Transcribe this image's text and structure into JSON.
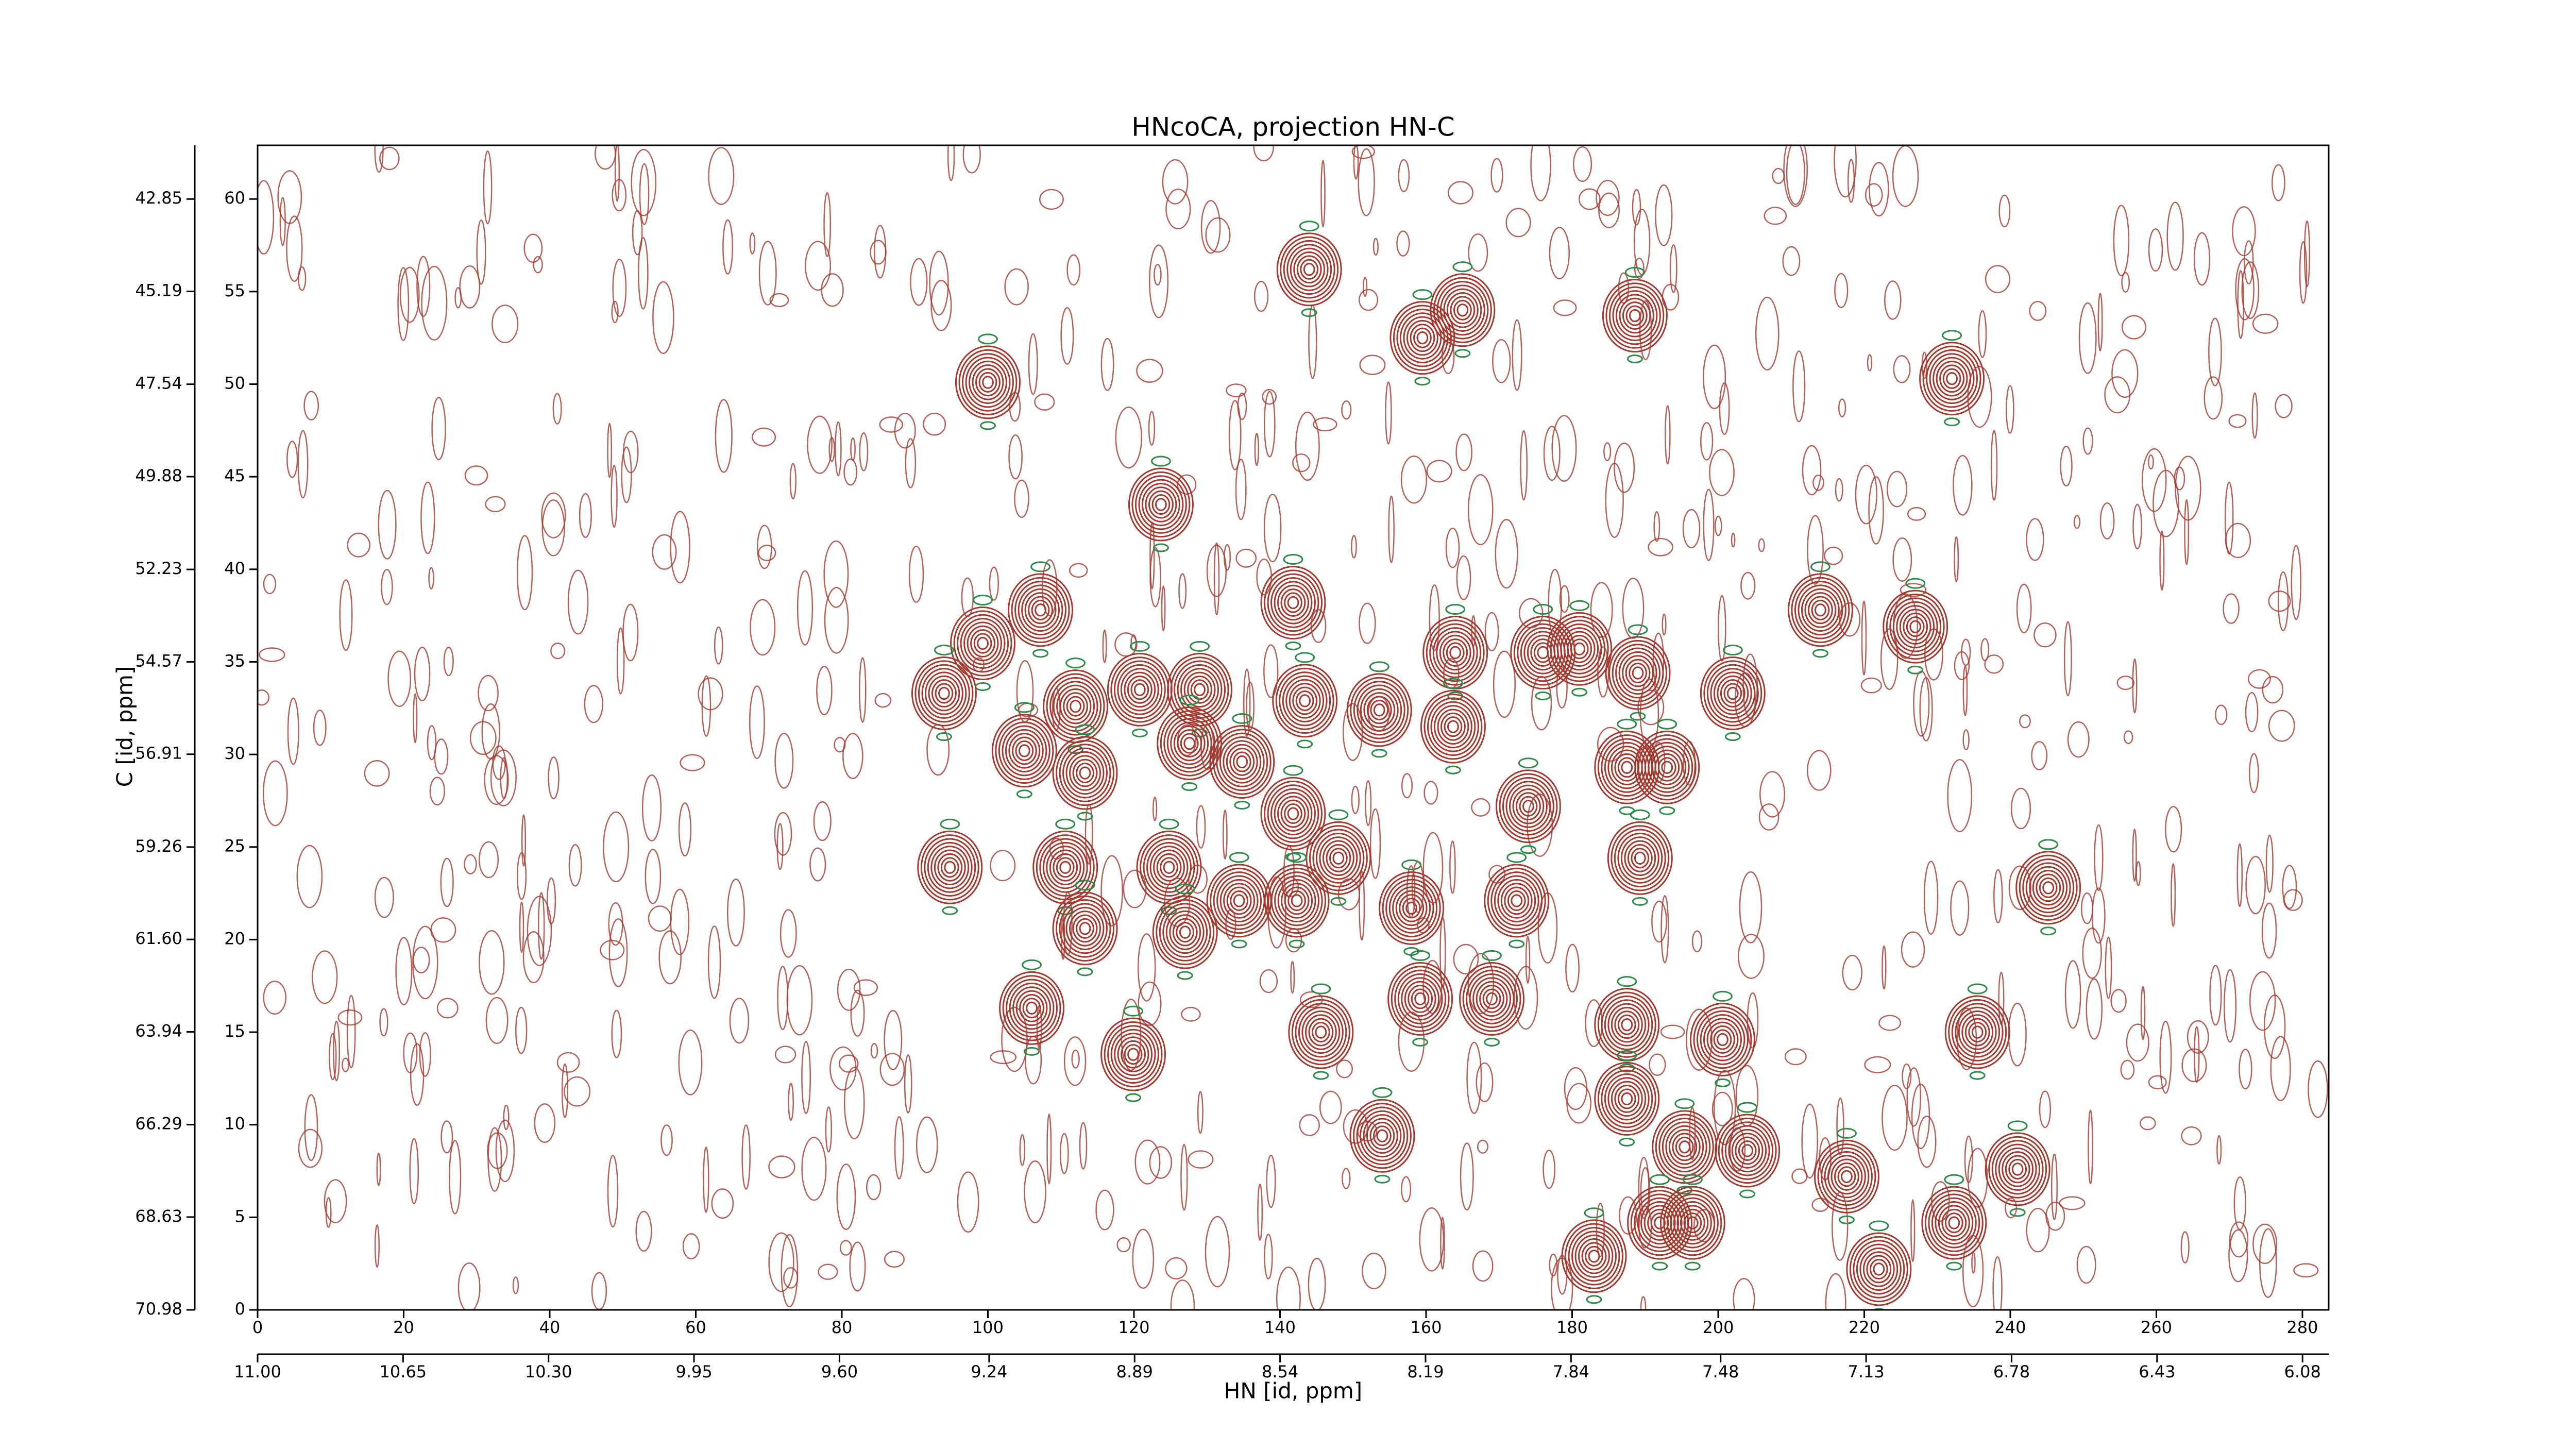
{
  "chart_data": {
    "type": "contour",
    "title": "HNcoCA, projection HN-C",
    "x_label": "HN [id, ppm]",
    "y_label": "C [id, ppm]",
    "xlim": [
      0,
      283.6
    ],
    "xticks": [
      0,
      20,
      40,
      60,
      80,
      100,
      120,
      140,
      160,
      180,
      200,
      220,
      240,
      260,
      280
    ],
    "x2lim": [
      11.0,
      6.017
    ],
    "x2ticks": [
      {
        "value": 11.0,
        "label": "11.00"
      },
      10.65,
      {
        "value": 10.3,
        "label": "10.30"
      },
      9.95,
      {
        "value": 9.6,
        "label": "9.60"
      },
      9.24,
      8.89,
      8.54,
      8.19,
      7.84,
      7.48,
      7.13,
      6.78,
      6.43,
      6.08
    ],
    "ylim": [
      0,
      62.9
    ],
    "yticks": [
      0,
      5,
      10,
      15,
      20,
      25,
      30,
      35,
      40,
      45,
      50,
      55,
      60
    ],
    "y2lim": [
      70.98,
      41.49
    ],
    "y2ticks": [
      42.85,
      45.19,
      47.54,
      49.88,
      52.23,
      54.57,
      56.91,
      59.26,
      {
        "value": 61.6,
        "label": "61.60"
      },
      63.94,
      66.29,
      68.63,
      70.98
    ],
    "color": "#a33a30",
    "negative_color": "#2e8b4a",
    "peaks": {
      "x": [
        100,
        144,
        159.5,
        165,
        188.6,
        232,
        123.7,
        99.3,
        107.2,
        94,
        141.8,
        164,
        176,
        181,
        189,
        202,
        214,
        227,
        112,
        120.8,
        129,
        127.6,
        105,
        113.3,
        134.8,
        143.4,
        153.6,
        163.7,
        187.5,
        193,
        174,
        141.8,
        148,
        94.8,
        110.6,
        124.8,
        189.3,
        134.4,
        142.3,
        158,
        172.4,
        113.3,
        127,
        245.2,
        106,
        159.2,
        169,
        119.9,
        187.5,
        187.5,
        154,
        200.6,
        235.5,
        204,
        195.4,
        217.6,
        241,
        232.3,
        192,
        196.5,
        183,
        222,
        145.6
      ],
      "y": [
        50.1,
        56.2,
        52.5,
        54,
        53.7,
        50.3,
        43.5,
        36,
        37.8,
        33.3,
        38.2,
        35.5,
        35.5,
        35.7,
        34.4,
        33.3,
        37.8,
        36.9,
        32.6,
        33.5,
        33.5,
        30.6,
        30.2,
        29,
        29.6,
        32.9,
        32.4,
        31.5,
        29.3,
        29.3,
        27.2,
        26.8,
        24.4,
        23.9,
        23.9,
        23.9,
        24.4,
        22.1,
        22.1,
        21.7,
        22.1,
        20.6,
        20.4,
        22.8,
        16.3,
        16.8,
        16.8,
        13.8,
        15.4,
        11.4,
        9.4,
        14.6,
        15,
        8.6,
        8.8,
        7.2,
        7.6,
        4.7,
        4.7,
        4.7,
        2.9,
        2.2,
        15
      ]
    }
  }
}
